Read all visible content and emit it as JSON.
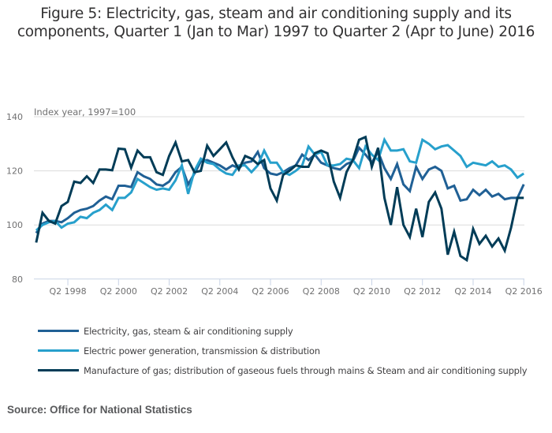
{
  "title_lines": [
    "Figure 5: Electricity, gas, steam and air conditioning supply and its",
    "components, Quarter 1 (Jan to Mar) 1997 to Quarter 2 (Apr to June) 2016"
  ],
  "source": "Source: Office for National Statistics",
  "chart_data": {
    "type": "line",
    "title": "Figure 5: Electricity, gas, steam and air conditioning supply and its components, Quarter 1 (Jan to Mar) 1997 to Quarter 2 (Apr to June) 2016",
    "ylabel": "Index year, 1997=100",
    "xlabel": "",
    "ylim": [
      80,
      140
    ],
    "yticks": [
      80,
      100,
      120,
      140
    ],
    "x_start": "Q1 1997",
    "x_end": "Q2 2016",
    "x_frequency": "quarterly",
    "xtick_labels": [
      "Q2 1998",
      "Q2 2000",
      "Q2 2002",
      "Q2 2004",
      "Q2 2006",
      "Q2 2008",
      "Q2 2010",
      "Q2 2012",
      "Q2 2014",
      "Q2 2016"
    ],
    "xtick_indices": [
      5,
      13,
      21,
      29,
      37,
      45,
      53,
      61,
      69,
      77
    ],
    "grid": "horizontal",
    "legend_position": "bottom",
    "series": [
      {
        "name": "Electricity, gas, steam & air conditioning supply",
        "color": "#206095",
        "values": [
          97,
          100.5,
          101.5,
          101.5,
          101,
          102.5,
          104.5,
          105.5,
          106,
          107,
          109,
          110.5,
          109.5,
          114.5,
          114.5,
          114,
          119.5,
          118,
          117,
          115,
          114.5,
          116,
          119.5,
          121.5,
          115,
          119,
          123.5,
          124,
          123,
          122,
          120.5,
          122,
          121,
          123,
          123.5,
          127,
          121,
          119,
          118.5,
          119.5,
          121,
          122,
          126,
          124,
          126,
          123,
          122,
          121,
          120.5,
          122.5,
          123.5,
          128.5,
          126,
          123,
          127,
          121,
          117,
          122.5,
          115,
          112.5,
          121.5,
          117,
          120.5,
          121.5,
          120,
          113.5,
          114.5,
          109,
          109.5,
          113,
          111,
          113,
          110.5,
          111.5,
          109.5,
          110,
          110,
          115
        ]
      },
      {
        "name": "Electric power generation, transmission & distribution",
        "color": "#27a0cc",
        "values": [
          98,
          100,
          101,
          101.5,
          99,
          100.5,
          101,
          103,
          102.5,
          104.5,
          105.5,
          107.5,
          105.5,
          110,
          110,
          112,
          117,
          115.5,
          114,
          113,
          113.5,
          113,
          116.5,
          122,
          111.5,
          120,
          124.5,
          123,
          122.5,
          120.5,
          119,
          118.5,
          122,
          122,
          119.5,
          122,
          127.5,
          123,
          123,
          119.5,
          118.5,
          120,
          122,
          129,
          126,
          127,
          122,
          122,
          122.5,
          124.5,
          124,
          121,
          129,
          126,
          124,
          131.5,
          127.5,
          127.5,
          128,
          123.5,
          123,
          131.5,
          130,
          128,
          129,
          129.5,
          127.5,
          125.5,
          121.5,
          123,
          122.5,
          122,
          123.5,
          121.5,
          122,
          120.5,
          117.5,
          119
        ]
      },
      {
        "name": "Manufacture of gas; distribution of gaseous fuels through mains & Steam and air conditioning supply",
        "color": "#003c57",
        "values": [
          93.5,
          104.5,
          101.5,
          100.5,
          107,
          108.5,
          116,
          115.5,
          118,
          115.5,
          120.5,
          120.5,
          120.2,
          128.2,
          128,
          121.2,
          127.5,
          125,
          125,
          119.5,
          118.5,
          125.5,
          130.5,
          123.5,
          124,
          119.5,
          120,
          129.3,
          125.5,
          128,
          130.5,
          125,
          120.5,
          125.5,
          124.5,
          122.5,
          124,
          113.5,
          109,
          118.5,
          120,
          122,
          121.5,
          121.5,
          126.5,
          127.5,
          126.5,
          116,
          110,
          119.5,
          124,
          131.5,
          132.5,
          121.5,
          128.5,
          110,
          100,
          114,
          100,
          95.5,
          106,
          95.5,
          108.5,
          112,
          106,
          89,
          97.5,
          88.5,
          87,
          98.5,
          93,
          96,
          92,
          95,
          90.5,
          99,
          110,
          110
        ]
      }
    ]
  }
}
